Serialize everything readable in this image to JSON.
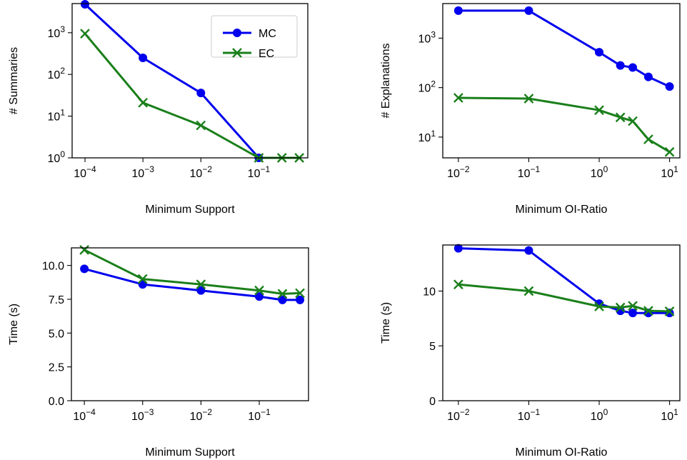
{
  "colors": {
    "MC": "#0000ee",
    "EC": "#1a7f1a"
  },
  "chart_data": [
    {
      "type": "line",
      "xscale": "log",
      "yscale": "log",
      "xlabel": "Minimum Support",
      "ylabel": "# Summaries",
      "xlim": [
        6e-05,
        0.7
      ],
      "ylim": [
        1,
        5000
      ],
      "xticks": [
        0.0001,
        0.001,
        0.01,
        0.1
      ],
      "xtick_labels": [
        [
          "10",
          "−4"
        ],
        [
          "10",
          "−3"
        ],
        [
          "10",
          "−2"
        ],
        [
          "10",
          "−1"
        ]
      ],
      "yticks": [
        1,
        10,
        100,
        1000
      ],
      "ytick_labels": [
        [
          "10",
          "0"
        ],
        [
          "10",
          "1"
        ],
        [
          "10",
          "2"
        ],
        [
          "10",
          "3"
        ]
      ],
      "legend": {
        "position": "top-right",
        "entries": [
          "MC",
          "EC"
        ]
      },
      "series": [
        {
          "name": "MC",
          "marker": "circle",
          "x": [
            0.0001,
            0.001,
            0.01,
            0.1
          ],
          "y": [
            4800,
            250,
            36,
            1
          ]
        },
        {
          "name": "EC",
          "marker": "x",
          "x": [
            0.0001,
            0.001,
            0.01,
            0.1,
            0.25,
            0.5
          ],
          "y": [
            950,
            21,
            6,
            1,
            1,
            1
          ]
        }
      ]
    },
    {
      "type": "line",
      "xscale": "log",
      "yscale": "log",
      "xlabel": "Minimum OI-Ratio",
      "ylabel": "# Explanations",
      "xlim": [
        0.006,
        14
      ],
      "ylim": [
        3.8,
        5000
      ],
      "xticks": [
        0.01,
        0.1,
        1,
        10
      ],
      "xtick_labels": [
        [
          "10",
          "−2"
        ],
        [
          "10",
          "−1"
        ],
        [
          "10",
          "0"
        ],
        [
          "10",
          "1"
        ]
      ],
      "yticks": [
        10,
        100,
        1000
      ],
      "ytick_labels": [
        [
          "10",
          "1"
        ],
        [
          "10",
          "2"
        ],
        [
          "10",
          "3"
        ]
      ],
      "series": [
        {
          "name": "MC",
          "marker": "circle",
          "x": [
            0.01,
            0.1,
            1,
            2,
            3,
            5,
            10
          ],
          "y": [
            3600,
            3600,
            520,
            280,
            255,
            165,
            105
          ]
        },
        {
          "name": "EC",
          "marker": "x",
          "x": [
            0.01,
            0.1,
            1,
            2,
            3,
            5,
            10
          ],
          "y": [
            62,
            60,
            35,
            25,
            21,
            9,
            5
          ]
        }
      ]
    },
    {
      "type": "line",
      "xscale": "log",
      "yscale": "linear",
      "xlabel": "Minimum Support",
      "ylabel": "Time (s)",
      "xlim": [
        6e-05,
        0.7
      ],
      "ylim": [
        0,
        11.3
      ],
      "xticks": [
        0.0001,
        0.001,
        0.01,
        0.1
      ],
      "xtick_labels": [
        [
          "10",
          "−4"
        ],
        [
          "10",
          "−3"
        ],
        [
          "10",
          "−2"
        ],
        [
          "10",
          "−1"
        ]
      ],
      "yticks": [
        0,
        2.5,
        5,
        7.5,
        10
      ],
      "ytick_labels": [
        [
          "0.0",
          ""
        ],
        [
          "2.5",
          ""
        ],
        [
          "5.0",
          ""
        ],
        [
          "7.5",
          ""
        ],
        [
          "10.0",
          ""
        ]
      ],
      "series": [
        {
          "name": "MC",
          "marker": "circle",
          "x": [
            0.0001,
            0.001,
            0.01,
            0.1,
            0.25,
            0.5
          ],
          "y": [
            9.75,
            8.6,
            8.15,
            7.7,
            7.45,
            7.45
          ]
        },
        {
          "name": "EC",
          "marker": "x",
          "x": [
            0.0001,
            0.001,
            0.01,
            0.1,
            0.25,
            0.5
          ],
          "y": [
            11.15,
            9.0,
            8.6,
            8.15,
            7.9,
            7.95
          ]
        }
      ]
    },
    {
      "type": "line",
      "xscale": "log",
      "yscale": "linear",
      "xlabel": "Minimum OI-Ratio",
      "ylabel": "Time (s)",
      "xlim": [
        0.006,
        14
      ],
      "ylim": [
        0,
        14.2
      ],
      "xticks": [
        0.01,
        0.1,
        1,
        10
      ],
      "xtick_labels": [
        [
          "10",
          "−2"
        ],
        [
          "10",
          "−1"
        ],
        [
          "10",
          "0"
        ],
        [
          "10",
          "1"
        ]
      ],
      "yticks": [
        0,
        5,
        10
      ],
      "ytick_labels": [
        [
          "0",
          ""
        ],
        [
          "5",
          ""
        ],
        [
          "10",
          ""
        ]
      ],
      "series": [
        {
          "name": "MC",
          "marker": "circle",
          "x": [
            0.01,
            0.1,
            1,
            2,
            3,
            5,
            10
          ],
          "y": [
            13.9,
            13.7,
            8.85,
            8.2,
            8.0,
            8.0,
            8.0
          ]
        },
        {
          "name": "EC",
          "marker": "x",
          "x": [
            0.01,
            0.1,
            1,
            2,
            3,
            5,
            10
          ],
          "y": [
            10.6,
            10.0,
            8.6,
            8.5,
            8.65,
            8.2,
            8.15
          ]
        }
      ]
    }
  ]
}
